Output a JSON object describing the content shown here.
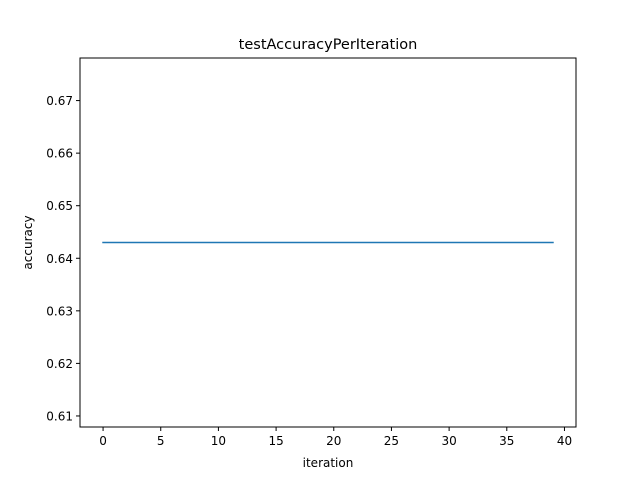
{
  "chart_data": {
    "type": "line",
    "title": "testAccuracyPerIteration",
    "xlabel": "iteration",
    "ylabel": "accuracy",
    "xlim": [
      -2,
      41
    ],
    "ylim": [
      0.6079,
      0.6781
    ],
    "x_ticks": [
      0,
      5,
      10,
      15,
      20,
      25,
      30,
      35,
      40
    ],
    "y_ticks": [
      0.61,
      0.62,
      0.63,
      0.64,
      0.65,
      0.66,
      0.67
    ],
    "x_tick_labels": [
      "0",
      "5",
      "10",
      "15",
      "20",
      "25",
      "30",
      "35",
      "40"
    ],
    "y_tick_labels": [
      "0.61",
      "0.62",
      "0.63",
      "0.64",
      "0.65",
      "0.66",
      "0.67"
    ],
    "grid": false,
    "series": [
      {
        "color": "#1f77b4",
        "x": [
          0,
          1,
          2,
          3,
          4,
          5,
          6,
          7,
          8,
          9,
          10,
          11,
          12,
          13,
          14,
          15,
          16,
          17,
          18,
          19,
          20,
          21,
          22,
          23,
          24,
          25,
          26,
          27,
          28,
          29,
          30,
          31,
          32,
          33,
          34,
          35,
          36,
          37,
          38,
          39
        ],
        "values": [
          0.643,
          0.643,
          0.643,
          0.643,
          0.643,
          0.643,
          0.643,
          0.643,
          0.643,
          0.643,
          0.643,
          0.643,
          0.643,
          0.643,
          0.643,
          0.643,
          0.643,
          0.643,
          0.643,
          0.643,
          0.643,
          0.643,
          0.643,
          0.643,
          0.643,
          0.643,
          0.643,
          0.643,
          0.643,
          0.643,
          0.643,
          0.643,
          0.643,
          0.643,
          0.643,
          0.643,
          0.643,
          0.643,
          0.643,
          0.643
        ]
      }
    ]
  }
}
